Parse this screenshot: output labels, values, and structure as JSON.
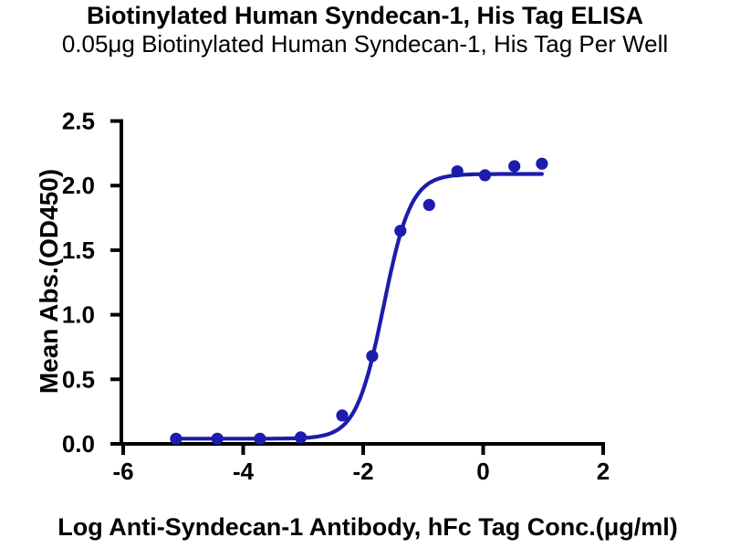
{
  "chart_data": {
    "type": "scatter",
    "title": "Biotinylated Human Syndecan-1, His Tag ELISA",
    "subtitle": "0.05μg Biotinylated Human Syndecan-1, His Tag Per Well",
    "xlabel": "Log Anti-Syndecan-1 Antibody, hFc Tag Conc.(μg/ml)",
    "ylabel": "Mean Abs.(OD450)",
    "xlim": [
      -6,
      2
    ],
    "ylim": [
      0,
      2.5
    ],
    "x_ticks": [
      -6,
      -4,
      -2,
      0,
      2
    ],
    "x_tick_labels": [
      "-6",
      "-4",
      "-2",
      "0",
      "2"
    ],
    "y_ticks": [
      0.0,
      0.5,
      1.0,
      1.5,
      2.0,
      2.5
    ],
    "y_tick_labels": [
      "0.0",
      "0.5",
      "1.0",
      "1.5",
      "2.0",
      "2.5"
    ],
    "grid": false,
    "legend": null,
    "series": [
      {
        "name": "Biotinylated Human Syndecan-1, His Tag",
        "marker": "circle",
        "color": "#1c1cad",
        "points": [
          {
            "x": -5.12,
            "y": 0.04
          },
          {
            "x": -4.43,
            "y": 0.04
          },
          {
            "x": -3.72,
            "y": 0.04
          },
          {
            "x": -3.04,
            "y": 0.05
          },
          {
            "x": -2.35,
            "y": 0.22
          },
          {
            "x": -1.85,
            "y": 0.68
          },
          {
            "x": -1.38,
            "y": 1.65
          },
          {
            "x": -0.9,
            "y": 1.85
          },
          {
            "x": -0.43,
            "y": 2.11
          },
          {
            "x": 0.03,
            "y": 2.08
          },
          {
            "x": 0.52,
            "y": 2.15
          },
          {
            "x": 0.98,
            "y": 2.17
          }
        ],
        "fit_curve": {
          "model": "4PL",
          "bottom": 0.04,
          "top": 2.09,
          "logEC50": -1.66,
          "hillslope": 1.9
        }
      }
    ]
  },
  "colors": {
    "curve": "#1c1cad",
    "axis": "#000000",
    "text": "#000000",
    "background": "#ffffff"
  }
}
